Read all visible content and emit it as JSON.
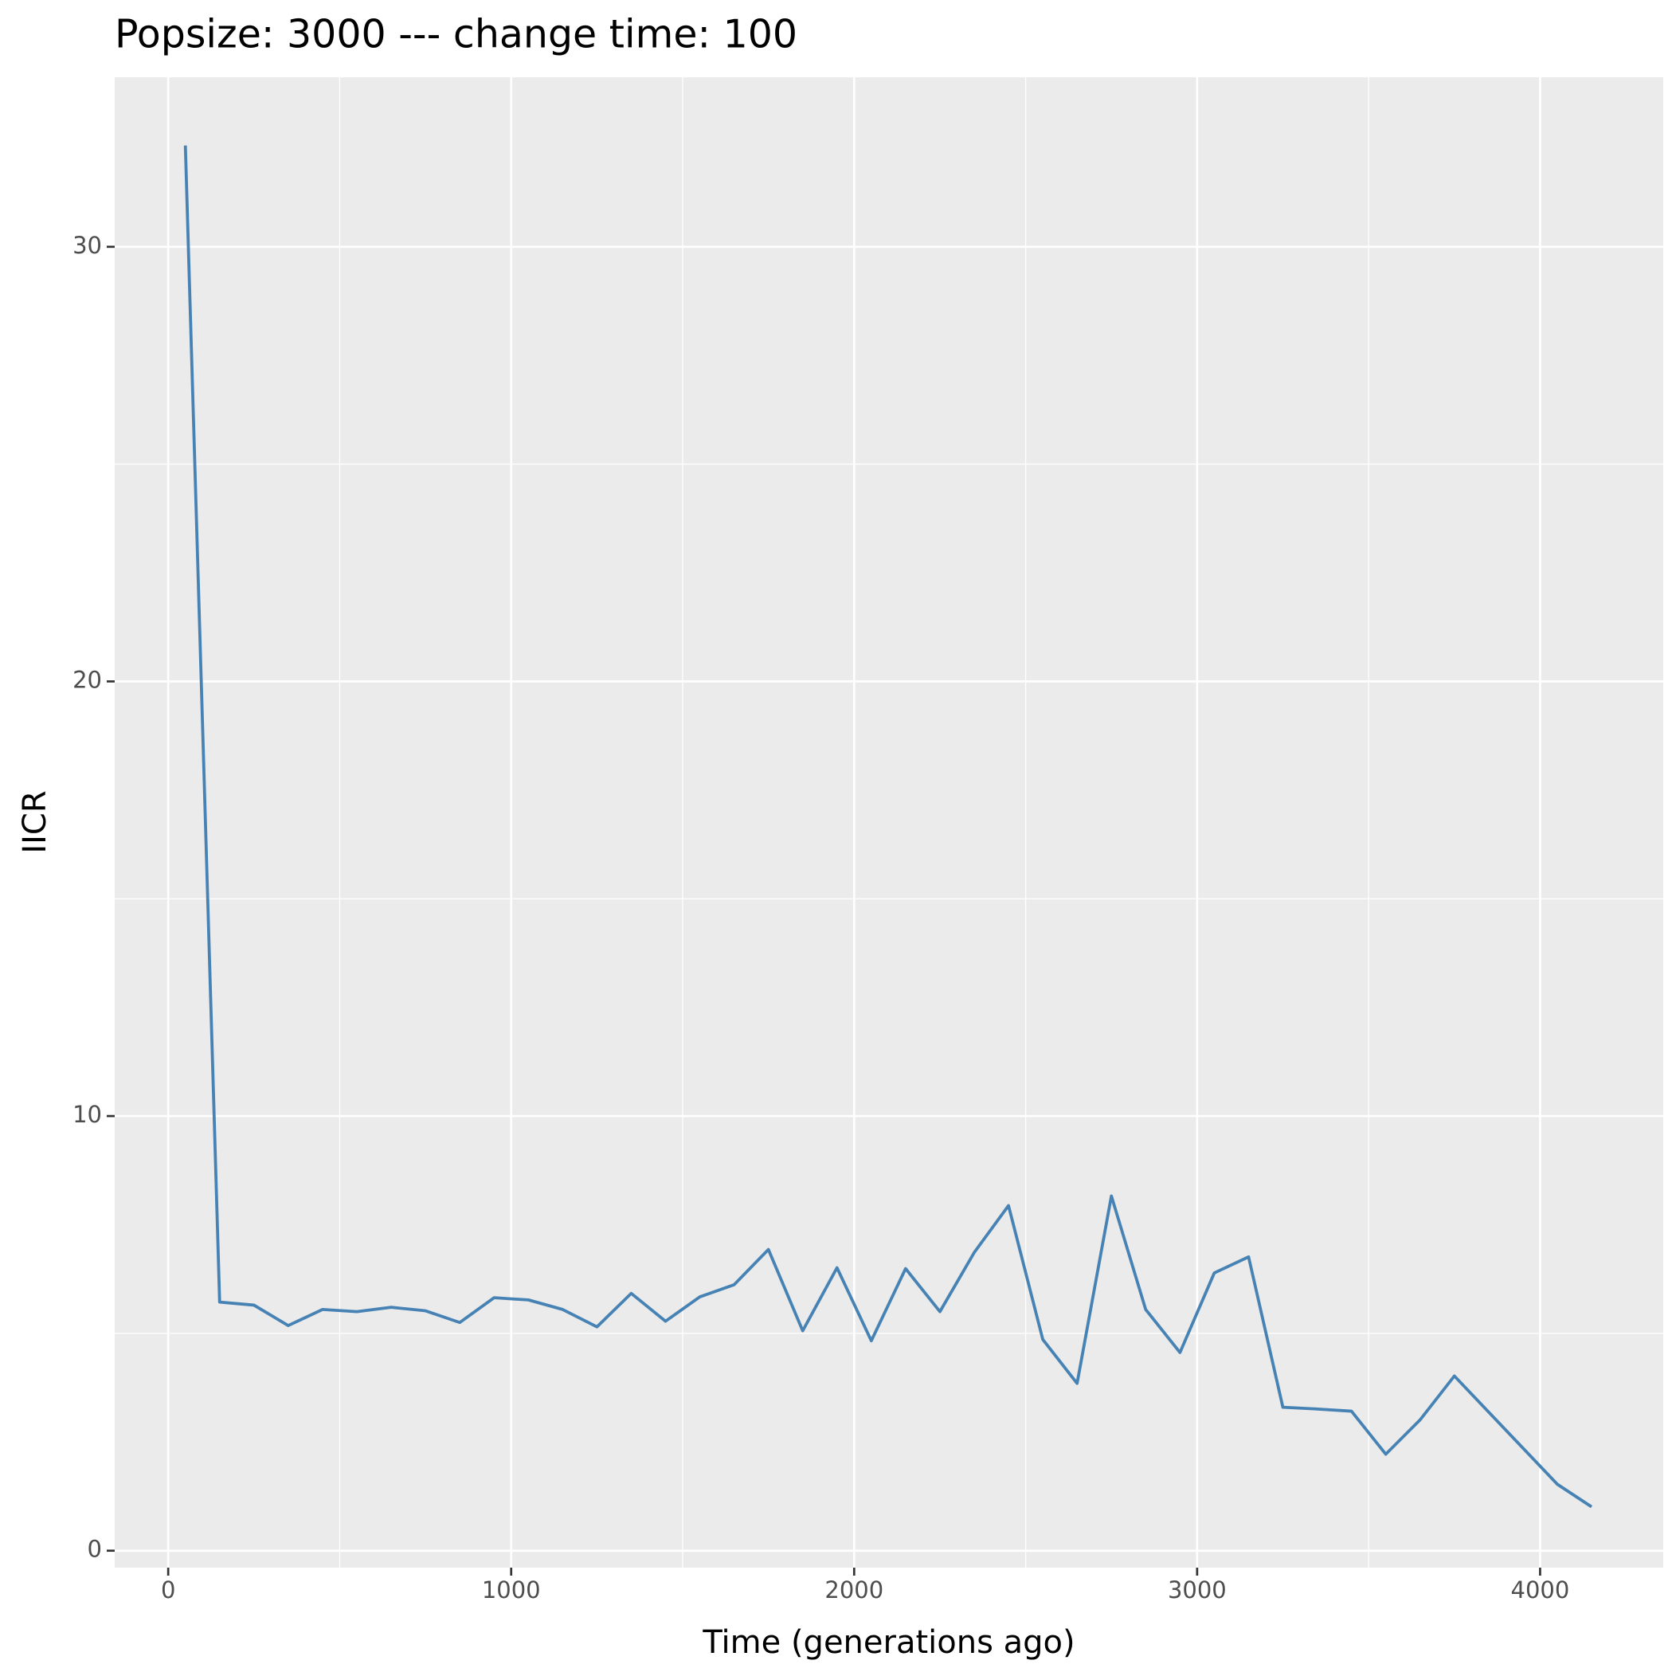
{
  "chart_data": {
    "type": "line",
    "title": "Popsize:  3000  --- change time:  100",
    "x_label": "Time (generations ago)",
    "y_label": "IICR",
    "x": [
      50,
      150,
      250,
      350,
      450,
      550,
      650,
      750,
      850,
      950,
      1050,
      1150,
      1250,
      1350,
      1450,
      1550,
      1650,
      1750,
      1850,
      1950,
      2050,
      2150,
      2250,
      2350,
      2450,
      2550,
      2650,
      2750,
      2850,
      2950,
      3050,
      3150,
      3250,
      3350,
      3450,
      3550,
      3650,
      3750,
      3850,
      3950,
      4050,
      4150
    ],
    "series": [
      {
        "name": "IICR",
        "color": "#4682b4",
        "values": [
          32.33,
          5.72,
          5.65,
          5.18,
          5.55,
          5.5,
          5.6,
          5.52,
          5.25,
          5.82,
          5.77,
          5.55,
          5.15,
          5.92,
          5.28,
          5.84,
          6.12,
          6.93,
          5.06,
          6.51,
          4.83,
          6.49,
          5.5,
          6.86,
          7.94,
          4.86,
          3.85,
          8.16,
          5.55,
          4.56,
          6.39,
          6.76,
          3.3,
          3.26,
          3.21,
          2.22,
          3.01,
          4.02,
          3.19,
          2.36,
          1.53,
          1.01
        ]
      }
    ],
    "xlim": [
      -156,
      4359
    ],
    "ylim": [
      -0.39,
      33.9
    ],
    "xticks": [
      0,
      1000,
      2000,
      3000,
      4000
    ],
    "yticks": [
      0,
      10,
      20,
      30
    ],
    "grid": true
  }
}
